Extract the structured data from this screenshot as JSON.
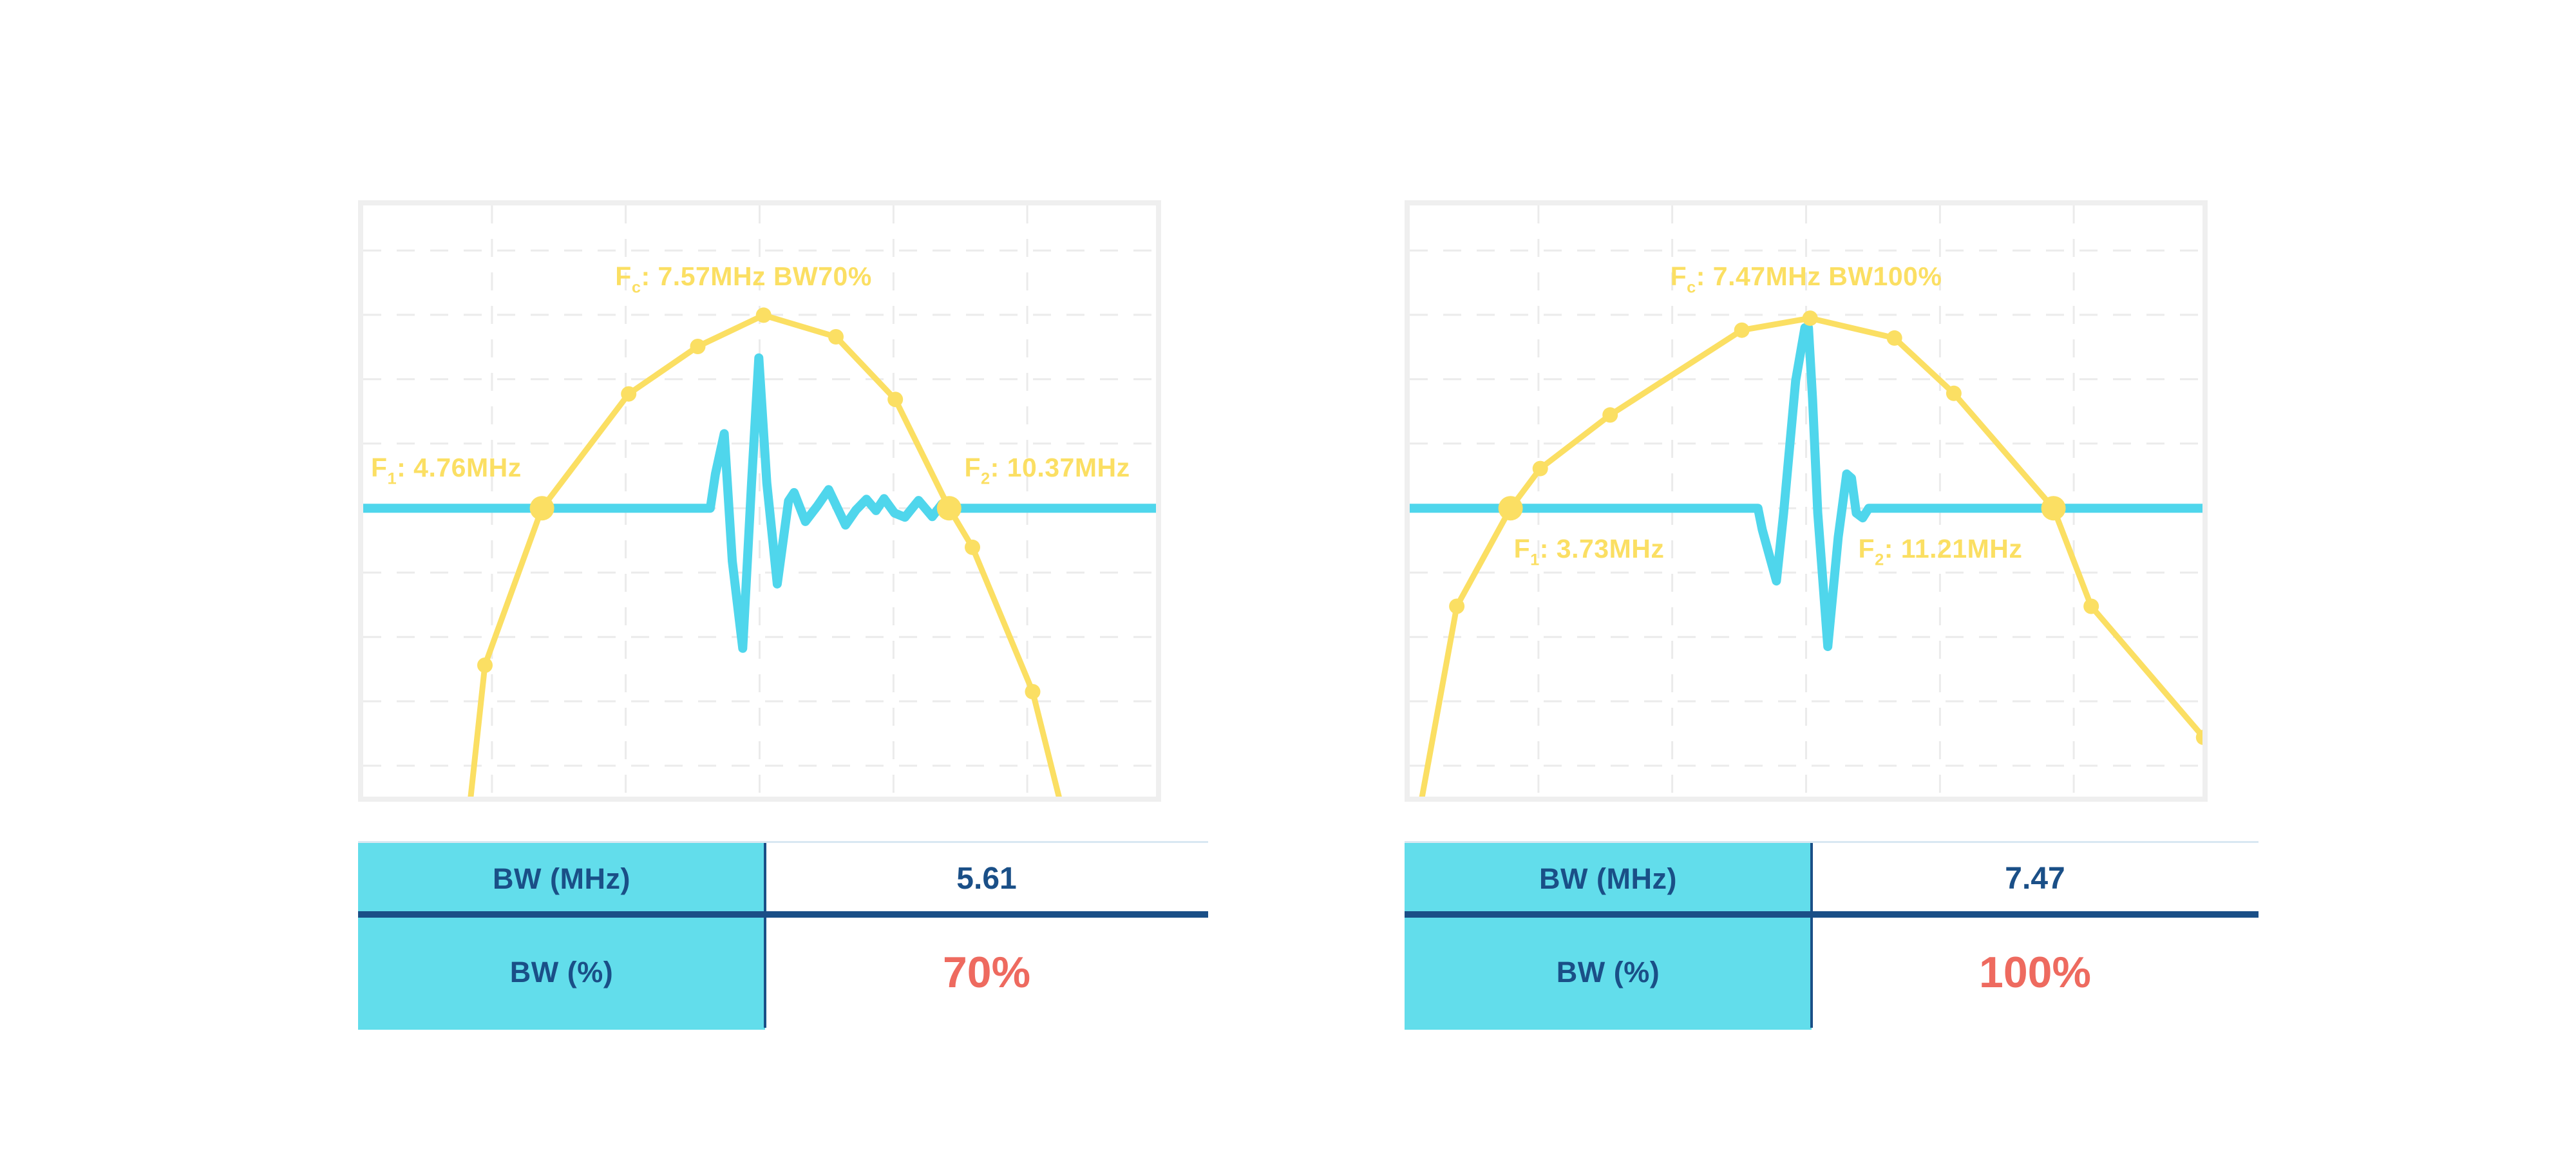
{
  "colors": {
    "yellow": "#FBDF63",
    "cyan-line": "#4FD6EC",
    "cyan-fill": "#62DDEB",
    "navy": "#1A4F87",
    "red": "#EE6A5F",
    "grid": "#ebebeb",
    "plot-border": "#efefef",
    "table-top": "#d9e8f2",
    "page-bg": "#ffffff"
  },
  "charts": [
    {
      "fc_label": {
        "f": "F",
        "sub": "c",
        "text": ": 7.57MHz BW70%"
      },
      "f1_label": {
        "f": "F",
        "sub": "1",
        "text": ": 4.76MHz"
      },
      "f2_label": {
        "f": "F",
        "sub": "2",
        "text": ": 10.37MHz"
      },
      "table": {
        "row1_label": "BW (MHz)",
        "row1_value": "5.61",
        "row2_label": "BW (%)",
        "row2_value": "70%"
      }
    },
    {
      "fc_label": {
        "f": "F",
        "sub": "c",
        "text": ": 7.47MHz BW100%"
      },
      "f1_label": {
        "f": "F",
        "sub": "1",
        "text": ": 3.73MHz"
      },
      "f2_label": {
        "f": "F",
        "sub": "2",
        "text": ": 11.21MHz"
      },
      "table": {
        "row1_label": "BW (MHz)",
        "row1_value": "7.47",
        "row2_label": "BW (%)",
        "row2_value": "100%"
      }
    }
  ],
  "chart_data": [
    {
      "type": "line",
      "title": "Fc: 7.57MHz BW70%",
      "annotations": [
        "Fc: 7.57MHz BW70%",
        "F1: 4.76MHz",
        "F2: 10.37MHz"
      ],
      "key_values": {
        "fc_mhz": 7.57,
        "f1_mhz": 4.76,
        "f2_mhz": 10.37,
        "bw_mhz": 5.61,
        "bw_percent": 70
      },
      "axes": {
        "x": "frequency (unlabeled)",
        "y": "amplitude (unlabeled)",
        "ticks": false,
        "grid": "dashed"
      },
      "grid": {
        "v": [
          0.1667,
          0.3333,
          0.5,
          0.6667,
          0.8333
        ],
        "h": [
          0.0835,
          0.1905,
          0.2975,
          0.4045,
          0.512,
          0.619,
          0.726,
          0.833,
          0.94
        ]
      },
      "baseline_y": 0.512,
      "series": [
        {
          "name": "spectrum",
          "color": "#FBDF63",
          "width": 9,
          "points": [
            [
              0.138,
              1.02
            ],
            [
              0.158,
              0.773
            ],
            [
              0.229,
              0.512
            ],
            [
              0.337,
              0.322
            ],
            [
              0.423,
              0.243
            ],
            [
              0.505,
              0.191
            ],
            [
              0.595,
              0.227
            ],
            [
              0.669,
              0.331
            ],
            [
              0.736,
              0.512
            ],
            [
              0.765,
              0.577
            ],
            [
              0.84,
              0.817
            ],
            [
              0.878,
              1.02
            ]
          ]
        },
        {
          "name": "pulse",
          "color": "#4FD6EC",
          "width": 14,
          "points": [
            [
              0,
              0.512
            ],
            [
              0.4386,
              0.512
            ],
            [
              0.445,
              0.455
            ],
            [
              0.456,
              0.388
            ],
            [
              0.466,
              0.6
            ],
            [
              0.479,
              0.745
            ],
            [
              0.49,
              0.47
            ],
            [
              0.499,
              0.262
            ],
            [
              0.509,
              0.47
            ],
            [
              0.522,
              0.638
            ],
            [
              0.536,
              0.5
            ],
            [
              0.543,
              0.486
            ],
            [
              0.557,
              0.534
            ],
            [
              0.572,
              0.508
            ],
            [
              0.586,
              0.481
            ],
            [
              0.607,
              0.54
            ],
            [
              0.62,
              0.515
            ],
            [
              0.633,
              0.497
            ],
            [
              0.645,
              0.516
            ],
            [
              0.655,
              0.496
            ],
            [
              0.668,
              0.52
            ],
            [
              0.681,
              0.527
            ],
            [
              0.69,
              0.512
            ],
            [
              0.698,
              0.499
            ],
            [
              0.715,
              0.526
            ],
            [
              0.727,
              0.505
            ],
            [
              0.736,
              0.512
            ],
            [
              1,
              0.512
            ]
          ]
        }
      ],
      "markers": {
        "small": [
          [
            0.158,
            0.773
          ],
          [
            0.337,
            0.322
          ],
          [
            0.423,
            0.243
          ],
          [
            0.505,
            0.191
          ],
          [
            0.595,
            0.227
          ],
          [
            0.669,
            0.331
          ],
          [
            0.765,
            0.577
          ],
          [
            0.84,
            0.817
          ]
        ],
        "big": [
          [
            0.229,
            0.512
          ],
          [
            0.736,
            0.512
          ]
        ]
      }
    },
    {
      "type": "line",
      "title": "Fc: 7.47MHz BW100%",
      "annotations": [
        "Fc: 7.47MHz BW100%",
        "F1: 3.73MHz",
        "F2: 11.21MHz"
      ],
      "key_values": {
        "fc_mhz": 7.47,
        "f1_mhz": 3.73,
        "f2_mhz": 11.21,
        "bw_mhz": 7.47,
        "bw_percent": 100
      },
      "axes": {
        "x": "frequency (unlabeled)",
        "y": "amplitude (unlabeled)",
        "ticks": false,
        "grid": "dashed"
      },
      "grid": {
        "v": [
          0.1667,
          0.3333,
          0.5,
          0.6667,
          0.8333
        ],
        "h": [
          0.0835,
          0.1905,
          0.2975,
          0.4045,
          0.512,
          0.619,
          0.726,
          0.833,
          0.94
        ]
      },
      "baseline_y": 0.512,
      "series": [
        {
          "name": "spectrum",
          "color": "#FBDF63",
          "width": 9,
          "points": [
            [
              0.018,
              1.02
            ],
            [
              0.065,
              0.675
            ],
            [
              0.132,
              0.512
            ],
            [
              0.169,
              0.446
            ],
            [
              0.256,
              0.357
            ],
            [
              0.42,
              0.216
            ],
            [
              0.505,
              0.196
            ],
            [
              0.61,
              0.229
            ],
            [
              0.684,
              0.321
            ],
            [
              0.808,
              0.512
            ],
            [
              0.855,
              0.675
            ],
            [
              0.995,
              0.893
            ]
          ]
        },
        {
          "name": "pulse",
          "color": "#4FD6EC",
          "width": 14,
          "points": [
            [
              0,
              0.512
            ],
            [
              0.44,
              0.512
            ],
            [
              0.4455,
              0.548
            ],
            [
              0.449,
              0.565
            ],
            [
              0.463,
              0.633
            ],
            [
              0.472,
              0.52
            ],
            [
              0.487,
              0.3
            ],
            [
              0.4985,
              0.212
            ],
            [
              0.503,
              0.212
            ],
            [
              0.508,
              0.33
            ],
            [
              0.5145,
              0.52
            ],
            [
              0.527,
              0.742
            ],
            [
              0.54,
              0.56
            ],
            [
              0.5505,
              0.455
            ],
            [
              0.5565,
              0.462
            ],
            [
              0.5625,
              0.52
            ],
            [
              0.5705,
              0.528
            ],
            [
              0.578,
              0.512
            ],
            [
              1,
              0.512
            ]
          ]
        }
      ],
      "markers": {
        "small": [
          [
            0.065,
            0.675
          ],
          [
            0.169,
            0.446
          ],
          [
            0.256,
            0.357
          ],
          [
            0.42,
            0.216
          ],
          [
            0.505,
            0.196
          ],
          [
            0.61,
            0.229
          ],
          [
            0.684,
            0.321
          ],
          [
            0.855,
            0.675
          ],
          [
            0.995,
            0.893
          ]
        ],
        "big": [
          [
            0.132,
            0.512
          ],
          [
            0.808,
            0.512
          ]
        ]
      }
    }
  ]
}
